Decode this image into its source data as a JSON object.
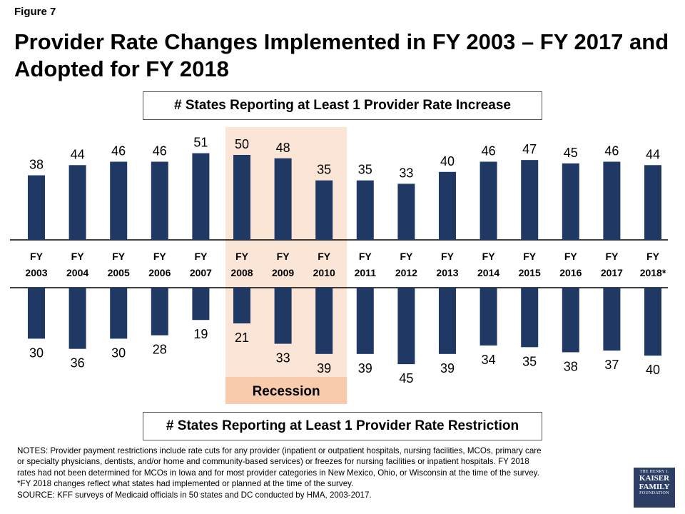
{
  "figure_label": "Figure 7",
  "title": "Provider Rate Changes Implemented in FY 2003 – FY 2017 and Adopted for FY 2018",
  "top_box_label": "# States Reporting at Least 1 Provider Rate Increase",
  "bottom_box_label": "# States Reporting at Least 1 Provider Rate Restriction",
  "recession_label": "Recession",
  "notes": [
    "NOTES: Provider payment restrictions include rate cuts for any provider (inpatient or outpatient hospitals, nursing facilities, MCOs, primary care",
    "or specialty physicians, dentists, and/or home and community-based services) or freezes for nursing facilities or inpatient hospitals. FY 2018",
    "rates had not been determined for MCOs in Iowa and for most provider categories in New Mexico, Ohio, or Wisconsin at the time of the survey.",
    "*FY 2018  changes reflect what states had implemented or planned at the time of the survey.",
    "SOURCE: KFF surveys of Medicaid officials in 50 states and DC conducted by HMA, 2003-2017."
  ],
  "logo": {
    "line1": "THE HENRY J.",
    "line2": "KAISER",
    "line3": "FAMILY",
    "line4": "FOUNDATION"
  },
  "colors": {
    "bar": "#1f3864",
    "recession_shade": "#fbe5d6",
    "recession_label_bg": "#f8cbad",
    "axis": "#000000"
  },
  "chart_data": {
    "type": "bar",
    "categories": [
      [
        "FY",
        "2003"
      ],
      [
        "FY",
        "2004"
      ],
      [
        "FY",
        "2005"
      ],
      [
        "FY",
        "2006"
      ],
      [
        "FY",
        "2007"
      ],
      [
        "FY",
        "2008"
      ],
      [
        "FY",
        "2009"
      ],
      [
        "FY",
        "2010"
      ],
      [
        "FY",
        "2011"
      ],
      [
        "FY",
        "2012"
      ],
      [
        "FY",
        "2013"
      ],
      [
        "FY",
        "2014"
      ],
      [
        "FY",
        "2015"
      ],
      [
        "FY",
        "2016"
      ],
      [
        "FY",
        "2017"
      ],
      [
        "FY",
        "2018*"
      ]
    ],
    "series": [
      {
        "name": "# States Reporting at Least 1 Provider Rate Increase",
        "direction": "up",
        "values": [
          38,
          44,
          46,
          46,
          51,
          50,
          48,
          35,
          35,
          33,
          40,
          46,
          47,
          45,
          46,
          44
        ]
      },
      {
        "name": "# States Reporting at Least 1 Provider Rate Restriction",
        "direction": "down",
        "values": [
          30,
          36,
          30,
          28,
          19,
          21,
          33,
          39,
          39,
          45,
          39,
          34,
          35,
          38,
          37,
          40
        ]
      }
    ],
    "recession_period": [
      "FY 2008",
      "FY 2010"
    ]
  }
}
